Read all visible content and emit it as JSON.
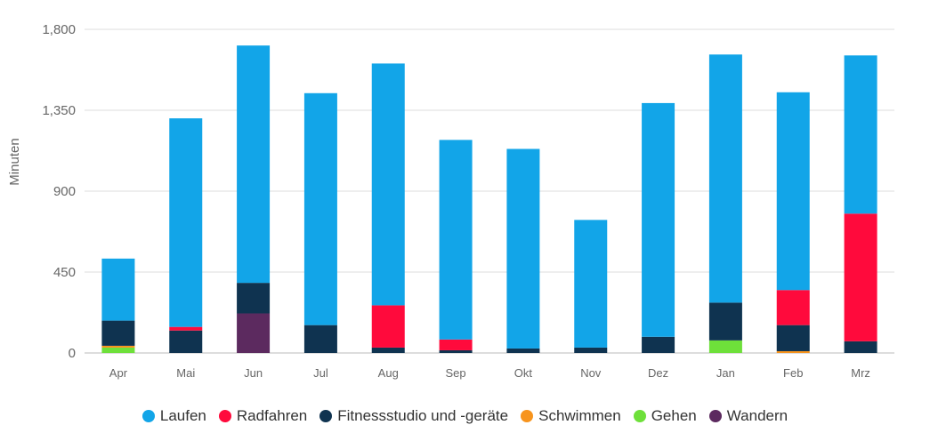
{
  "chart_data": {
    "type": "bar",
    "stacked": true,
    "title": "",
    "xlabel": "",
    "ylabel": "Minuten",
    "ylim": [
      0,
      1800
    ],
    "yticks": [
      0,
      450,
      900,
      1350,
      1800
    ],
    "ytick_labels": [
      "0",
      "450",
      "900",
      "1,350",
      "1,800"
    ],
    "grid": true,
    "legend_position": "bottom",
    "categories": [
      "Apr",
      "Mai",
      "Jun",
      "Jul",
      "Aug",
      "Sep",
      "Okt",
      "Nov",
      "Dez",
      "Jan",
      "Feb",
      "Mrz"
    ],
    "series": [
      {
        "name": "Wandern",
        "color": "#5C2A5F",
        "values": [
          0,
          0,
          220,
          0,
          0,
          0,
          0,
          0,
          0,
          0,
          0,
          0
        ]
      },
      {
        "name": "Gehen",
        "color": "#6EE03A",
        "values": [
          30,
          0,
          0,
          0,
          0,
          0,
          0,
          0,
          0,
          70,
          0,
          0
        ]
      },
      {
        "name": "Schwimmen",
        "color": "#F7941D",
        "values": [
          10,
          0,
          0,
          0,
          0,
          0,
          0,
          0,
          0,
          0,
          10,
          0
        ]
      },
      {
        "name": "Fitnessstudio und -geräte",
        "color": "#0F3350",
        "values": [
          140,
          125,
          170,
          155,
          30,
          15,
          25,
          30,
          90,
          210,
          145,
          65
        ]
      },
      {
        "name": "Radfahren",
        "color": "#FF0A3C",
        "values": [
          0,
          20,
          0,
          0,
          235,
          60,
          0,
          0,
          0,
          0,
          195,
          710
        ]
      },
      {
        "name": "Laufen",
        "color": "#12A5E8",
        "values": [
          345,
          1160,
          1320,
          1290,
          1345,
          1110,
          1110,
          710,
          1300,
          1380,
          1100,
          880
        ]
      }
    ]
  },
  "legend": [
    {
      "label": "Laufen",
      "color": "#12A5E8"
    },
    {
      "label": "Radfahren",
      "color": "#FF0A3C"
    },
    {
      "label": "Fitnessstudio und -geräte",
      "color": "#0F3350"
    },
    {
      "label": "Schwimmen",
      "color": "#F7941D"
    },
    {
      "label": "Gehen",
      "color": "#6EE03A"
    },
    {
      "label": "Wandern",
      "color": "#5C2A5F"
    }
  ]
}
